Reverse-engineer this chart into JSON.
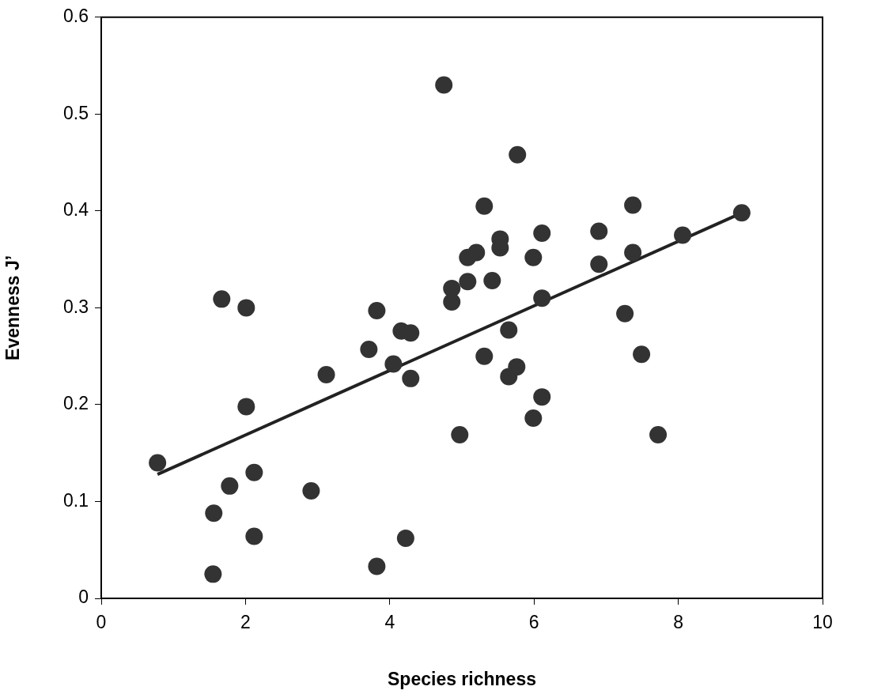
{
  "chart_data": {
    "type": "scatter",
    "xlabel": "Species richness",
    "ylabel": "Evenness J’",
    "xlim": [
      0,
      10
    ],
    "xticks": [
      0,
      2,
      4,
      6,
      8,
      10
    ],
    "ylim": [
      0,
      0.6
    ],
    "yticks": [
      0,
      0.1,
      0.2,
      0.3,
      0.4,
      0.5,
      0.6
    ],
    "grid": false,
    "legend": false,
    "marker": "circle",
    "series": [
      {
        "color": "#333333",
        "x": [
          0.78,
          1.55,
          1.56,
          1.67,
          1.78,
          2.01,
          2.01,
          2.12,
          2.12,
          2.91,
          3.12,
          3.71,
          3.82,
          3.82,
          4.05,
          4.16,
          4.22,
          4.29,
          4.29,
          4.75,
          4.86,
          4.86,
          4.97,
          5.08,
          5.08,
          5.2,
          5.31,
          5.31,
          5.42,
          5.53,
          5.53,
          5.65,
          5.65,
          5.76,
          5.77,
          5.99,
          5.99,
          6.11,
          6.11,
          6.11,
          6.9,
          6.9,
          7.26,
          7.37,
          7.37,
          7.49,
          7.72,
          8.06,
          8.88
        ],
        "values": [
          0.14,
          0.025,
          0.088,
          0.309,
          0.116,
          0.3,
          0.198,
          0.13,
          0.064,
          0.111,
          0.231,
          0.257,
          0.297,
          0.033,
          0.242,
          0.276,
          0.062,
          0.274,
          0.227,
          0.53,
          0.32,
          0.306,
          0.169,
          0.352,
          0.327,
          0.357,
          0.405,
          0.25,
          0.328,
          0.371,
          0.362,
          0.277,
          0.229,
          0.239,
          0.458,
          0.352,
          0.186,
          0.377,
          0.31,
          0.208,
          0.379,
          0.345,
          0.294,
          0.406,
          0.357,
          0.252,
          0.169,
          0.375,
          0.398
        ]
      },
      {
        "type": "line",
        "color": "#222222",
        "x": [
          0.78,
          8.88
        ],
        "values": [
          0.128,
          0.398
        ],
        "marker": "none",
        "line_style": "solid"
      }
    ]
  }
}
